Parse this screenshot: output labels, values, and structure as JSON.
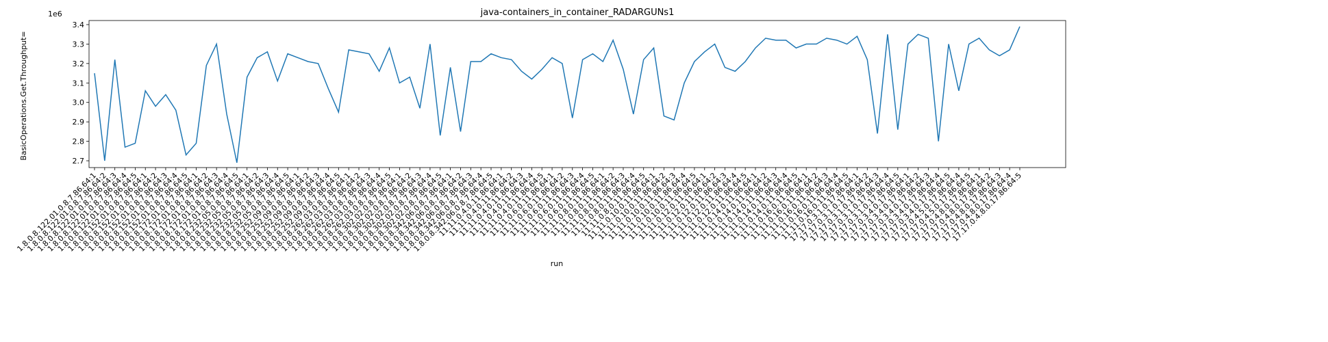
{
  "chart_data": {
    "type": "line",
    "title": "java-containers_in_container_RADARGUNs1",
    "x_label": "run",
    "y_label": "BasicOperations.Get.Throughput=",
    "y_offset_label": "1e6",
    "color": "#1f77b4",
    "ylim": [
      2665000,
      3421000
    ],
    "yticks": [
      {
        "value": 2700000,
        "label": "2.7"
      },
      {
        "value": 2800000,
        "label": "2.8"
      },
      {
        "value": 2900000,
        "label": "2.9"
      },
      {
        "value": 3000000,
        "label": "3.0"
      },
      {
        "value": 3100000,
        "label": "3.1"
      },
      {
        "value": 3200000,
        "label": "3.2"
      },
      {
        "value": 3300000,
        "label": "3.3"
      },
      {
        "value": 3400000,
        "label": "3.4"
      }
    ],
    "categories": [
      "1.8.0.8.122.01.0.8.7.86.64:1",
      "1.8.0.8.122.01.0.8.7.86.64:2",
      "1.8.0.8.122.01.0.8.7.86.64:3",
      "1.8.0.8.122.01.0.8.7.86.64:4",
      "1.8.0.8.122.01.0.8.7.86.64:5",
      "1.8.0.8.152.01.0.8.7.86.64:1",
      "1.8.0.8.152.01.0.8.7.86.64:2",
      "1.8.0.8.152.01.0.8.7.86.64:3",
      "1.8.0.8.152.01.0.8.7.86.64:4",
      "1.8.0.8.152.01.0.8.7.86.64:5",
      "1.8.0.8.172.01.0.8.7.86.64:1",
      "1.8.0.8.172.01.0.8.7.86.64:2",
      "1.8.0.8.172.01.0.8.7.86.64:3",
      "1.8.0.8.172.01.0.8.7.86.64:4",
      "1.8.0.8.172.01.0.8.7.86.64:5",
      "1.8.0.8.232.05.0.8.7.86.64:1",
      "1.8.0.8.232.05.0.8.7.86.64:2",
      "1.8.0.8.232.05.0.8.7.86.64:3",
      "1.8.0.8.232.05.0.8.7.86.64:4",
      "1.8.0.8.232.05.0.8.7.86.64:5",
      "1.8.0.8.252.09.0.8.7.86.64:1",
      "1.8.0.8.252.09.0.8.7.86.64:2",
      "1.8.0.8.252.09.0.8.7.86.64:3",
      "1.8.0.8.252.09.0.8.7.86.64:4",
      "1.8.0.8.252.09.0.8.7.86.64:5",
      "1.8.0.8.262.03.0.8.7.86.64:1",
      "1.8.0.8.262.03.0.8.7.86.64:2",
      "1.8.0.8.262.03.0.8.7.86.64:3",
      "1.8.0.8.262.03.0.8.7.86.64:4",
      "1.8.0.8.262.03.0.8.7.86.64:5",
      "1.8.0.8.302.02.0.8.7.86.64:1",
      "1.8.0.8.302.02.0.8.7.86.64:2",
      "1.8.0.8.302.02.0.8.7.86.64:3",
      "1.8.0.8.302.02.0.8.7.86.64:4",
      "1.8.0.8.302.02.0.8.7.86.64:5",
      "1.8.0.8.342.06.0.8.7.86.64:1",
      "1.8.0.8.342.06.0.8.7.86.64:2",
      "1.8.0.8.342.06.0.8.7.86.64:3",
      "1.8.0.8.342.06.0.8.7.86.64:4",
      "1.8.0.8.342.06.0.8.7.86.64:5",
      "11.11.0.4.0.11.86.64:1",
      "11.11.0.4.0.11.86.64:2",
      "11.11.0.4.0.11.86.64:3",
      "11.11.0.4.0.11.86.64:4",
      "11.11.0.4.0.11.86.64:5",
      "11.11.0.6.0.11.86.64:1",
      "11.11.0.6.0.11.86.64:2",
      "11.11.0.6.0.11.86.64:3",
      "11.11.0.6.0.11.86.64:4",
      "11.11.0.6.0.11.86.64:5",
      "11.11.0.8.0.11.86.64:1",
      "11.11.0.8.0.11.86.64:2",
      "11.11.0.8.0.11.86.64:3",
      "11.11.0.8.0.11.86.64:4",
      "11.11.0.8.0.11.86.64:5",
      "11.11.0.10.0.11.86.64:1",
      "11.11.0.10.0.11.86.64:2",
      "11.11.0.10.0.11.86.64:3",
      "11.11.0.10.0.11.86.64:4",
      "11.11.0.10.0.11.86.64:5",
      "11.11.0.12.0.11.86.64:1",
      "11.11.0.12.0.11.86.64:2",
      "11.11.0.12.0.11.86.64:3",
      "11.11.0.12.0.11.86.64:4",
      "11.11.0.12.0.11.86.64:5",
      "11.11.0.14.0.11.86.64:1",
      "11.11.0.14.0.11.86.64:2",
      "11.11.0.14.0.11.86.64:3",
      "11.11.0.14.0.11.86.64:4",
      "11.11.0.14.0.11.86.64:5",
      "11.11.0.16.0.11.86.64:1",
      "11.11.0.16.0.11.86.64:2",
      "11.11.0.16.0.11.86.64:3",
      "11.11.0.16.0.11.86.64:4",
      "11.11.0.16.0.11.86.64:5",
      "17.17.0.3.1.0.17.86.64:1",
      "17.17.0.3.1.0.17.86.64:2",
      "17.17.0.3.1.0.17.86.64:3",
      "17.17.0.3.1.0.17.86.64:4",
      "17.17.0.3.1.0.17.86.64:5",
      "17.17.0.3.4.0.17.86.64:1",
      "17.17.0.3.4.0.17.86.64:2",
      "17.17.0.3.4.0.17.86.64:3",
      "17.17.0.3.4.0.17.86.64:4",
      "17.17.0.3.4.0.17.86.64:5",
      "17.17.0.4.5.0.17.86.64:4",
      "17.17.0.4.5.0.17.86.64:5",
      "17.17.0.4.8.0.17.86.64:1",
      "17.17.0.4.8.0.17.86.64:2",
      "17.17.0.4.8.0.17.86.64:3",
      "17.17.0.4.8.0.17.86.64:4",
      "17.17.0.4.8.0.17.86.64:5"
    ],
    "values": [
      3150000,
      2700000,
      3220000,
      2770000,
      2790000,
      3060000,
      2980000,
      3040000,
      2960000,
      2730000,
      2790000,
      3190000,
      3300000,
      2940000,
      2690000,
      3130000,
      3230000,
      3260000,
      3110000,
      3250000,
      3230000,
      3210000,
      3200000,
      3070000,
      2950000,
      3270000,
      3260000,
      3250000,
      3160000,
      3280000,
      3100000,
      3130000,
      2970000,
      3300000,
      2830000,
      3180000,
      2850000,
      3210000,
      3210000,
      3250000,
      3230000,
      3220000,
      3160000,
      3120000,
      3170000,
      3230000,
      3200000,
      2920000,
      3220000,
      3250000,
      3210000,
      3320000,
      3170000,
      2940000,
      3220000,
      3280000,
      2930000,
      2910000,
      3100000,
      3210000,
      3260000,
      3300000,
      3180000,
      3160000,
      3210000,
      3280000,
      3330000,
      3320000,
      3320000,
      3280000,
      3300000,
      3300000,
      3330000,
      3320000,
      3300000,
      3340000,
      3220000,
      2840000,
      3350000,
      2860000,
      3300000,
      3350000,
      3330000,
      2800000,
      3300000,
      3060000,
      3300000,
      3330000,
      3270000,
      3240000,
      3270000,
      3390000
    ]
  }
}
